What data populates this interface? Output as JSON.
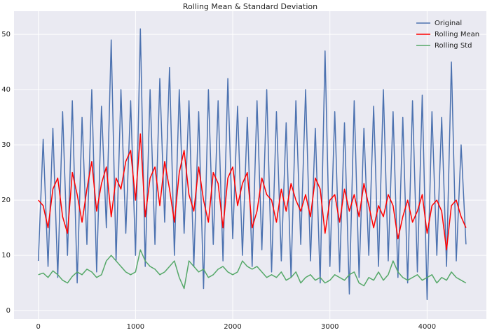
{
  "chart_data": {
    "type": "line",
    "title": "Rolling Mean & Standard Deviation",
    "x": [
      0,
      50,
      100,
      150,
      200,
      250,
      300,
      350,
      400,
      450,
      500,
      550,
      600,
      650,
      700,
      750,
      800,
      850,
      900,
      950,
      1000,
      1050,
      1100,
      1150,
      1200,
      1250,
      1300,
      1350,
      1400,
      1450,
      1500,
      1550,
      1600,
      1650,
      1700,
      1750,
      1800,
      1850,
      1900,
      1950,
      2000,
      2050,
      2100,
      2150,
      2200,
      2250,
      2300,
      2350,
      2400,
      2450,
      2500,
      2550,
      2600,
      2650,
      2700,
      2750,
      2800,
      2850,
      2900,
      2950,
      3000,
      3050,
      3100,
      3150,
      3200,
      3250,
      3300,
      3350,
      3400,
      3450,
      3500,
      3550,
      3600,
      3650,
      3700,
      3750,
      3800,
      3850,
      3900,
      3950,
      4000,
      4050,
      4100,
      4150,
      4200,
      4250,
      4300,
      4350,
      4400
    ],
    "series": [
      {
        "name": "Original",
        "color": "#4c72b0",
        "values": [
          9,
          31,
          8,
          33,
          6,
          36,
          10,
          38,
          5,
          35,
          12,
          40,
          7,
          37,
          15,
          49,
          9,
          40,
          14,
          38,
          10,
          51,
          8,
          40,
          12,
          42,
          16,
          44,
          10,
          40,
          14,
          38,
          8,
          36,
          4,
          40,
          12,
          38,
          9,
          42,
          13,
          37,
          10,
          35,
          8,
          38,
          11,
          40,
          7,
          36,
          9,
          34,
          6,
          38,
          12,
          40,
          9,
          33,
          5,
          47,
          8,
          36,
          7,
          34,
          3,
          38,
          6,
          33,
          10,
          37,
          8,
          40,
          9,
          36,
          6,
          35,
          5,
          38,
          7,
          39,
          2,
          36,
          10,
          35,
          8,
          45,
          9,
          30,
          12
        ]
      },
      {
        "name": "Rolling Mean",
        "color": "#ff0000",
        "values": [
          20,
          19,
          15,
          22,
          24,
          17,
          14,
          25,
          21,
          16,
          22,
          27,
          18,
          23,
          26,
          17,
          24,
          22,
          27,
          29,
          20,
          32,
          17,
          24,
          26,
          19,
          27,
          22,
          16,
          25,
          29,
          21,
          18,
          26,
          20,
          16,
          25,
          23,
          15,
          24,
          26,
          19,
          23,
          25,
          15,
          18,
          24,
          21,
          20,
          16,
          22,
          18,
          23,
          20,
          18,
          21,
          17,
          24,
          22,
          14,
          20,
          21,
          16,
          22,
          18,
          21,
          17,
          23,
          19,
          15,
          19,
          17,
          21,
          19,
          13,
          17,
          20,
          16,
          18,
          21,
          14,
          19,
          20,
          18,
          11,
          19,
          20,
          17,
          15
        ]
      },
      {
        "name": "Rolling Std",
        "color": "#55a868",
        "values": [
          6.5,
          6.8,
          6,
          7.2,
          6.5,
          5.5,
          5,
          6.2,
          7,
          6.5,
          7.5,
          7,
          6,
          6.5,
          9,
          10,
          9,
          8,
          7,
          6.5,
          7,
          11,
          9,
          8,
          7.5,
          6.5,
          7,
          8,
          9,
          6,
          4,
          9,
          8,
          7,
          7.5,
          6,
          6.5,
          7.5,
          8,
          7,
          6.5,
          7,
          9,
          8,
          7.5,
          8,
          7,
          6,
          6.5,
          6,
          7,
          5.5,
          6,
          7,
          5,
          6,
          6.5,
          5.5,
          6,
          5,
          5.5,
          6.5,
          6,
          5.5,
          6.5,
          7,
          5,
          4.5,
          6,
          5.5,
          7,
          5.5,
          6.5,
          9,
          7,
          6,
          5.5,
          6,
          6.5,
          5.5,
          6,
          6.5,
          5,
          6,
          5.5,
          7,
          6,
          5.5,
          5
        ]
      }
    ],
    "xlim": [
      -250,
      4610
    ],
    "xticks": [
      0,
      1000,
      2000,
      3000,
      4000
    ],
    "ylim": [
      -1.5,
      54.2
    ],
    "yticks": [
      0,
      10,
      20,
      30,
      40,
      50
    ],
    "grid": true,
    "legend": "upper right"
  }
}
